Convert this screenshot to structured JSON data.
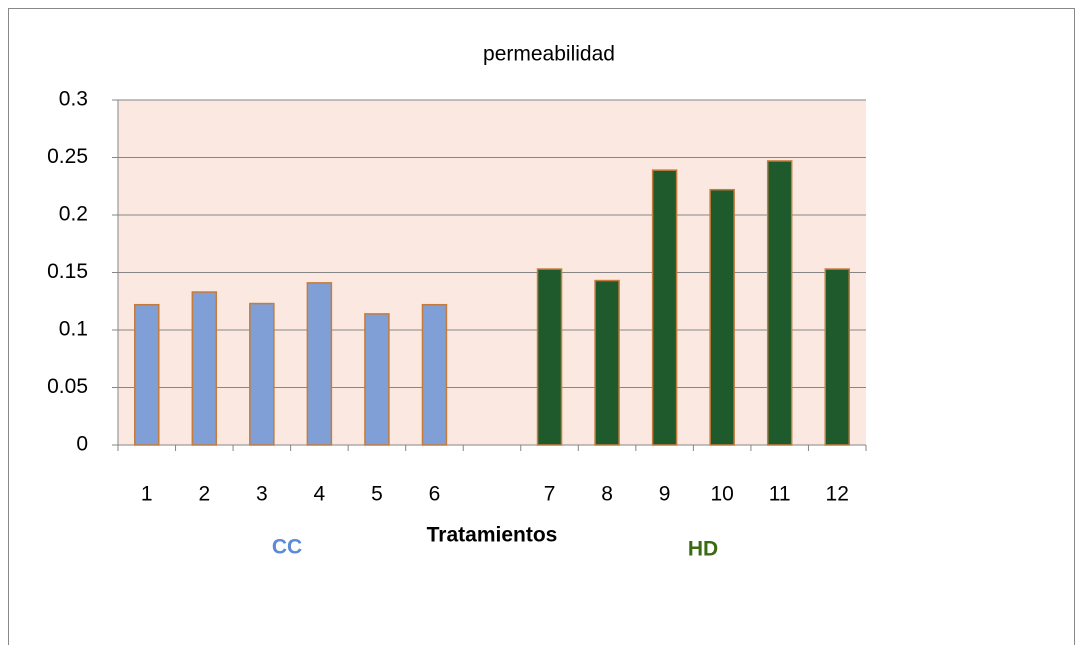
{
  "chart_data": {
    "type": "bar",
    "title": "permeabilidad",
    "x_label": "Tratamientos",
    "categories": [
      "1",
      "2",
      "3",
      "4",
      "5",
      "6",
      null,
      "7",
      "8",
      "9",
      "10",
      "11",
      "12"
    ],
    "series": [
      {
        "name": "CC",
        "color": "#7f9fd6",
        "label_color": "#5b8ad6",
        "values": [
          0.122,
          0.133,
          0.123,
          0.141,
          0.114,
          0.122,
          null,
          null,
          null,
          null,
          null,
          null,
          null
        ]
      },
      {
        "name": "HD",
        "color": "#1f5a2c",
        "label_color": "#3a6b14",
        "values": [
          null,
          null,
          null,
          null,
          null,
          null,
          null,
          0.153,
          0.143,
          0.239,
          0.222,
          0.247,
          0.153
        ]
      }
    ],
    "ylim": [
      0,
      0.3
    ],
    "yticks": [
      0,
      0.05,
      0.1,
      0.15,
      0.2,
      0.25,
      0.3
    ],
    "grid": true
  }
}
